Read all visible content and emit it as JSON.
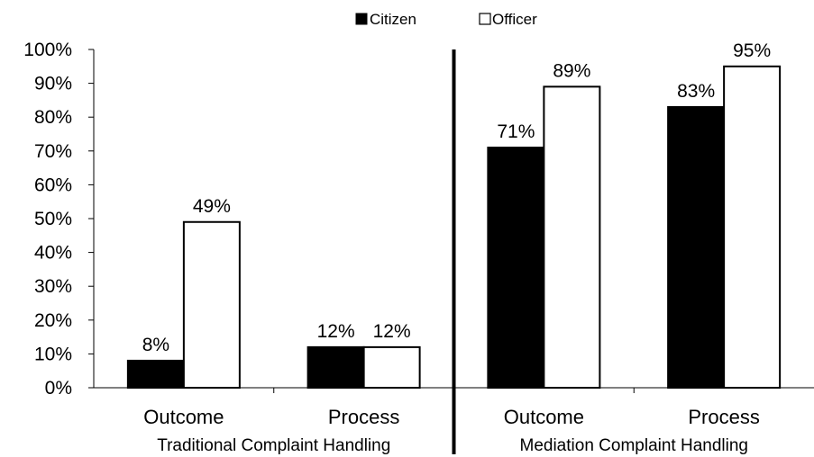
{
  "chart_data": {
    "type": "bar",
    "categories": [
      "Outcome",
      "Process",
      "Outcome",
      "Process"
    ],
    "groups": [
      {
        "label": "Traditional Complaint Handling",
        "categories": [
          0,
          1
        ]
      },
      {
        "label": "Mediation Complaint Handling",
        "categories": [
          2,
          3
        ]
      }
    ],
    "series": [
      {
        "name": "Citizen",
        "values": [
          8,
          12,
          71,
          83
        ],
        "labels": [
          "8%",
          "12%",
          "71%",
          "83%"
        ],
        "color": "#000000"
      },
      {
        "name": "Officer",
        "values": [
          49,
          12,
          89,
          95
        ],
        "labels": [
          "49%",
          "12%",
          "89%",
          "95%"
        ],
        "color": "#ffffff"
      }
    ],
    "ylim": [
      0,
      100
    ],
    "yticks": [
      "0%",
      "10%",
      "20%",
      "30%",
      "40%",
      "50%",
      "60%",
      "70%",
      "80%",
      "90%",
      "100%"
    ],
    "legend_position": "top-center",
    "grid": false,
    "title": "",
    "xlabel": "",
    "ylabel": ""
  }
}
